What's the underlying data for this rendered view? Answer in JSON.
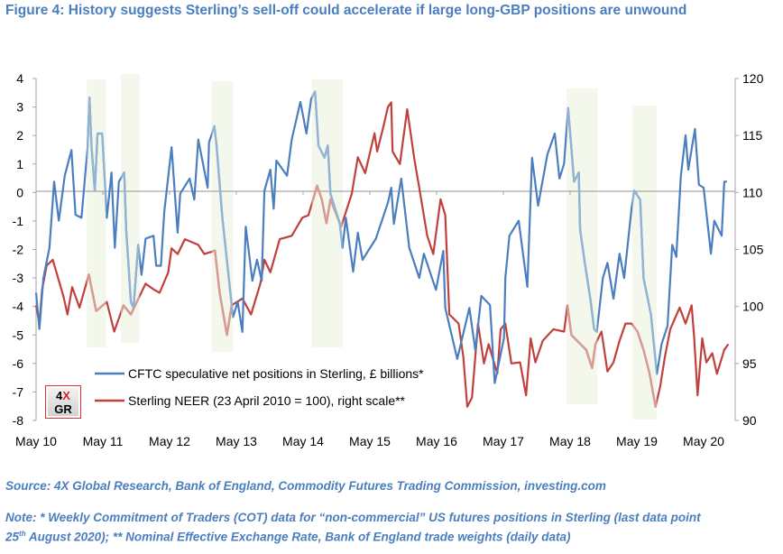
{
  "title": "Figure 4: History suggests Sterling’s sell-off could accelerate if large long-GBP positions are unwound",
  "footer": {
    "source": "Source: 4X Global Research, Bank of England, Commodity Futures Trading Commission, investing.com",
    "note_line1": "Note: * Weekly Commitment of Traders (COT) data for “non-commercial” US futures positions in Sterling (last data point",
    "note_line2_day": "25",
    "note_line2_sup": "th",
    "note_line2_rest": " August 2020); ** Nominal Effective Exchange Rate, Bank of England trade weights (daily data)"
  },
  "logo": {
    "top_num": "4",
    "top_x": "X",
    "bottom": "GR"
  },
  "colors": {
    "cftc": "#4a7ebf",
    "neer": "#c0403c",
    "cftc_light": "#93b3d3",
    "neer_light": "#d99a92",
    "band": "#f3f7ec",
    "title": "#4a7ebf"
  },
  "chart_data": {
    "type": "line",
    "title": "Figure 4: History suggests Sterling’s sell-off could accelerate if large long-GBP positions are unwound",
    "x_tick_labels": [
      "May 10",
      "May 11",
      "May 12",
      "May 13",
      "May 14",
      "May 15",
      "May 16",
      "May 17",
      "May 18",
      "May 19",
      "May 20"
    ],
    "x_ticks": [
      2010.37,
      2011.37,
      2012.37,
      2013.37,
      2014.37,
      2015.37,
      2016.37,
      2017.37,
      2018.37,
      2019.37,
      2020.37
    ],
    "xlim": [
      2010.37,
      2020.9
    ],
    "left_axis": {
      "ylim": [
        -8,
        4
      ],
      "ticks": [
        "4",
        "3",
        "2",
        "1",
        "0",
        "-1",
        "-2",
        "-3",
        "-4",
        "-5",
        "-6",
        "-7",
        "-8"
      ]
    },
    "right_axis": {
      "ylim": [
        90,
        120
      ],
      "ticks": [
        "120",
        "115",
        "110",
        "105",
        "100",
        "95",
        "90"
      ]
    },
    "grid": false,
    "legend_position": "bottom-left",
    "highlight_periods": [
      [
        2011.13,
        2011.42
      ],
      [
        2011.64,
        2011.92
      ],
      [
        2013.0,
        2013.32
      ],
      [
        2014.5,
        2014.96
      ],
      [
        2018.32,
        2018.78
      ],
      [
        2019.3,
        2019.67
      ]
    ],
    "series": [
      {
        "name": "CFTC speculative net positions in Sterling, £ billions*",
        "axis": "left",
        "points": [
          [
            2010.37,
            -3.52
          ],
          [
            2010.42,
            -4.79
          ],
          [
            2010.48,
            -3.0
          ],
          [
            2010.57,
            -1.94
          ],
          [
            2010.64,
            0.38
          ],
          [
            2010.71,
            -0.99
          ],
          [
            2010.8,
            0.59
          ],
          [
            2010.9,
            1.49
          ],
          [
            2010.96,
            -0.78
          ],
          [
            2011.05,
            -0.89
          ],
          [
            2011.14,
            1.54
          ],
          [
            2011.17,
            3.33
          ],
          [
            2011.2,
            1.65
          ],
          [
            2011.25,
            0.06
          ],
          [
            2011.29,
            2.07
          ],
          [
            2011.36,
            2.07
          ],
          [
            2011.43,
            -0.89
          ],
          [
            2011.5,
            0.7
          ],
          [
            2011.55,
            -1.94
          ],
          [
            2011.61,
            0.38
          ],
          [
            2011.69,
            0.7
          ],
          [
            2011.72,
            -1.31
          ],
          [
            2011.79,
            -3.84
          ],
          [
            2011.83,
            -4.05
          ],
          [
            2011.9,
            -1.84
          ],
          [
            2011.95,
            -2.89
          ],
          [
            2012.01,
            -1.62
          ],
          [
            2012.13,
            -1.52
          ],
          [
            2012.17,
            -2.57
          ],
          [
            2012.24,
            -2.57
          ],
          [
            2012.29,
            -0.68
          ],
          [
            2012.4,
            1.59
          ],
          [
            2012.49,
            -1.41
          ],
          [
            2012.53,
            -0.04
          ],
          [
            2012.67,
            0.49
          ],
          [
            2012.74,
            -0.25
          ],
          [
            2012.8,
            1.86
          ],
          [
            2012.94,
            0.17
          ],
          [
            2012.96,
            1.75
          ],
          [
            2013.04,
            2.33
          ],
          [
            2013.07,
            1.75
          ],
          [
            2013.16,
            -0.89
          ],
          [
            2013.32,
            -4.37
          ],
          [
            2013.39,
            -3.84
          ],
          [
            2013.46,
            -4.89
          ],
          [
            2013.51,
            -1.2
          ],
          [
            2013.61,
            -3.1
          ],
          [
            2013.68,
            -2.36
          ],
          [
            2013.75,
            -3.1
          ],
          [
            2013.79,
            0.06
          ],
          [
            2013.88,
            0.8
          ],
          [
            2013.93,
            -0.57
          ],
          [
            2013.97,
            1.12
          ],
          [
            2014.13,
            0.59
          ],
          [
            2014.2,
            1.86
          ],
          [
            2014.33,
            3.18
          ],
          [
            2014.42,
            2.07
          ],
          [
            2014.49,
            3.28
          ],
          [
            2014.55,
            3.54
          ],
          [
            2014.6,
            1.65
          ],
          [
            2014.69,
            1.22
          ],
          [
            2014.74,
            1.65
          ],
          [
            2014.78,
            -0.04
          ],
          [
            2014.92,
            -1.1
          ],
          [
            2014.96,
            -1.94
          ],
          [
            2015.01,
            -0.89
          ],
          [
            2015.12,
            -2.78
          ],
          [
            2015.19,
            -1.41
          ],
          [
            2015.26,
            -2.36
          ],
          [
            2015.46,
            -1.62
          ],
          [
            2015.64,
            -0.36
          ],
          [
            2015.69,
            0.17
          ],
          [
            2015.73,
            -1.1
          ],
          [
            2015.84,
            0.49
          ],
          [
            2015.96,
            -1.94
          ],
          [
            2016.11,
            -3.0
          ],
          [
            2016.18,
            -2.15
          ],
          [
            2016.36,
            -3.42
          ],
          [
            2016.47,
            -2.05
          ],
          [
            2016.5,
            -4.05
          ],
          [
            2016.68,
            -5.84
          ],
          [
            2016.86,
            -4.05
          ],
          [
            2016.95,
            -5.53
          ],
          [
            2017.04,
            -3.63
          ],
          [
            2017.17,
            -3.95
          ],
          [
            2017.24,
            -6.69
          ],
          [
            2017.38,
            -5.11
          ],
          [
            2017.4,
            -3.0
          ],
          [
            2017.46,
            -1.52
          ],
          [
            2017.6,
            -0.99
          ],
          [
            2017.73,
            -3.31
          ],
          [
            2017.8,
            1.22
          ],
          [
            2017.89,
            -0.46
          ],
          [
            2018.03,
            1.33
          ],
          [
            2018.14,
            2.07
          ],
          [
            2018.21,
            0.49
          ],
          [
            2018.28,
            1.01
          ],
          [
            2018.34,
            2.96
          ],
          [
            2018.43,
            0.38
          ],
          [
            2018.5,
            0.7
          ],
          [
            2018.52,
            -1.31
          ],
          [
            2018.59,
            -2.47
          ],
          [
            2018.68,
            -3.84
          ],
          [
            2018.73,
            -4.79
          ],
          [
            2018.77,
            -4.89
          ],
          [
            2018.86,
            -3.0
          ],
          [
            2018.93,
            -2.47
          ],
          [
            2019.02,
            -3.73
          ],
          [
            2019.11,
            -2.15
          ],
          [
            2019.18,
            -3.0
          ],
          [
            2019.29,
            -0.57
          ],
          [
            2019.33,
            0.06
          ],
          [
            2019.42,
            -0.25
          ],
          [
            2019.47,
            -3.0
          ],
          [
            2019.58,
            -4.26
          ],
          [
            2019.67,
            -6.37
          ],
          [
            2019.74,
            -5.32
          ],
          [
            2019.83,
            -4.68
          ],
          [
            2019.9,
            -1.84
          ],
          [
            2019.96,
            -2.26
          ],
          [
            2020.03,
            0.59
          ],
          [
            2020.1,
            2.01
          ],
          [
            2020.14,
            0.8
          ],
          [
            2020.24,
            2.23
          ],
          [
            2020.3,
            0.27
          ],
          [
            2020.37,
            0.17
          ],
          [
            2020.48,
            -2.15
          ],
          [
            2020.53,
            -0.99
          ],
          [
            2020.64,
            -1.52
          ],
          [
            2020.68,
            0.38
          ],
          [
            2020.72,
            0.38
          ]
        ]
      },
      {
        "name": "Sterling NEER (23 April 2010 = 100), right scale**",
        "axis": "right",
        "points": [
          [
            2010.37,
            100.1
          ],
          [
            2010.42,
            98.5
          ],
          [
            2010.46,
            101.5
          ],
          [
            2010.53,
            103.6
          ],
          [
            2010.62,
            104.1
          ],
          [
            2010.78,
            100.9
          ],
          [
            2010.84,
            99.3
          ],
          [
            2010.91,
            101.7
          ],
          [
            2011.02,
            99.9
          ],
          [
            2011.16,
            102.8
          ],
          [
            2011.27,
            99.6
          ],
          [
            2011.43,
            100.4
          ],
          [
            2011.54,
            97.8
          ],
          [
            2011.68,
            100.1
          ],
          [
            2011.79,
            99.3
          ],
          [
            2011.92,
            100.9
          ],
          [
            2012.01,
            102.0
          ],
          [
            2012.13,
            101.5
          ],
          [
            2012.22,
            101.2
          ],
          [
            2012.35,
            103.0
          ],
          [
            2012.4,
            105.1
          ],
          [
            2012.49,
            104.6
          ],
          [
            2012.6,
            105.9
          ],
          [
            2012.8,
            105.4
          ],
          [
            2012.89,
            104.6
          ],
          [
            2013.05,
            104.9
          ],
          [
            2013.12,
            101.2
          ],
          [
            2013.23,
            97.5
          ],
          [
            2013.3,
            100.1
          ],
          [
            2013.46,
            100.7
          ],
          [
            2013.59,
            99.3
          ],
          [
            2013.73,
            102.0
          ],
          [
            2013.79,
            104.1
          ],
          [
            2013.88,
            103.0
          ],
          [
            2014.02,
            105.9
          ],
          [
            2014.2,
            106.2
          ],
          [
            2014.36,
            107.8
          ],
          [
            2014.45,
            108.0
          ],
          [
            2014.58,
            110.6
          ],
          [
            2014.65,
            109.4
          ],
          [
            2014.72,
            107.3
          ],
          [
            2014.78,
            109.4
          ],
          [
            2014.94,
            107.0
          ],
          [
            2015.1,
            109.9
          ],
          [
            2015.19,
            113.1
          ],
          [
            2015.3,
            111.7
          ],
          [
            2015.44,
            115.2
          ],
          [
            2015.48,
            113.6
          ],
          [
            2015.57,
            115.7
          ],
          [
            2015.64,
            117.5
          ],
          [
            2015.69,
            117.9
          ],
          [
            2015.71,
            113.6
          ],
          [
            2015.82,
            112.5
          ],
          [
            2015.93,
            117.3
          ],
          [
            2016.04,
            112.8
          ],
          [
            2016.11,
            110.4
          ],
          [
            2016.23,
            106.2
          ],
          [
            2016.32,
            104.6
          ],
          [
            2016.43,
            109.4
          ],
          [
            2016.5,
            108.0
          ],
          [
            2016.56,
            99.3
          ],
          [
            2016.7,
            98.5
          ],
          [
            2016.77,
            95.6
          ],
          [
            2016.83,
            91.2
          ],
          [
            2016.9,
            92.0
          ],
          [
            2016.99,
            98.5
          ],
          [
            2017.08,
            95.0
          ],
          [
            2017.15,
            96.7
          ],
          [
            2017.28,
            94.1
          ],
          [
            2017.33,
            98.0
          ],
          [
            2017.4,
            98.5
          ],
          [
            2017.49,
            95.0
          ],
          [
            2017.62,
            95.1
          ],
          [
            2017.71,
            92.2
          ],
          [
            2017.78,
            97.2
          ],
          [
            2017.85,
            95.1
          ],
          [
            2017.96,
            97.0
          ],
          [
            2018.12,
            98.0
          ],
          [
            2018.28,
            97.8
          ],
          [
            2018.33,
            100.1
          ],
          [
            2018.39,
            97.5
          ],
          [
            2018.61,
            96.2
          ],
          [
            2018.7,
            94.6
          ],
          [
            2018.75,
            96.7
          ],
          [
            2018.84,
            97.8
          ],
          [
            2018.93,
            94.3
          ],
          [
            2019.02,
            95.1
          ],
          [
            2019.11,
            97.0
          ],
          [
            2019.2,
            98.5
          ],
          [
            2019.29,
            98.5
          ],
          [
            2019.38,
            97.8
          ],
          [
            2019.47,
            96.2
          ],
          [
            2019.56,
            94.1
          ],
          [
            2019.65,
            91.2
          ],
          [
            2019.72,
            93.0
          ],
          [
            2019.79,
            95.6
          ],
          [
            2019.87,
            98.0
          ],
          [
            2020.01,
            99.9
          ],
          [
            2020.1,
            98.5
          ],
          [
            2020.19,
            100.1
          ],
          [
            2020.23,
            97.2
          ],
          [
            2020.28,
            92.2
          ],
          [
            2020.35,
            97.2
          ],
          [
            2020.41,
            95.1
          ],
          [
            2020.5,
            95.9
          ],
          [
            2020.57,
            94.1
          ],
          [
            2020.68,
            96.2
          ],
          [
            2020.74,
            96.7
          ]
        ]
      }
    ]
  }
}
